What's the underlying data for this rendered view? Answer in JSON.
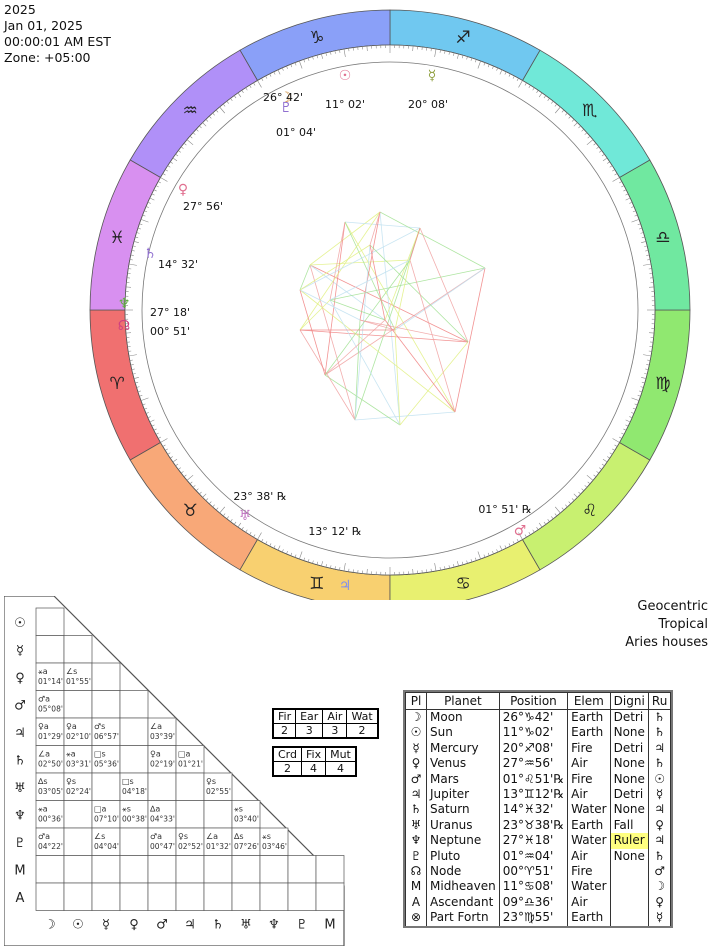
{
  "header": {
    "year": "2025",
    "date": "Jan 01, 2025",
    "time": "00:00:01 AM EST",
    "zone": "Zone: +05:00"
  },
  "settings": [
    "Geocentric",
    "Tropical",
    "Aries houses"
  ],
  "wheel": {
    "signs": [
      {
        "glyph": "♈",
        "color": "#f07070"
      },
      {
        "glyph": "♉",
        "color": "#f8a878"
      },
      {
        "glyph": "♊",
        "color": "#f8d070"
      },
      {
        "glyph": "♋",
        "color": "#e8f070"
      },
      {
        "glyph": "♌",
        "color": "#c8f070"
      },
      {
        "glyph": "♍",
        "color": "#90e870"
      },
      {
        "glyph": "♎",
        "color": "#70e8a0"
      },
      {
        "glyph": "♏",
        "color": "#70e8d8"
      },
      {
        "glyph": "♐",
        "color": "#70c8f0"
      },
      {
        "glyph": "♑",
        "color": "#8aa0f8"
      },
      {
        "glyph": "♒",
        "color": "#b090f8"
      },
      {
        "glyph": "♓",
        "color": "#d890f0"
      }
    ],
    "planet_labels": [
      {
        "glyph": "♃",
        "deg": "13°",
        "min": "12'",
        "retro": "℞"
      },
      {
        "glyph": "♅",
        "deg": "23°",
        "min": "38'",
        "retro": "℞"
      },
      {
        "glyph": "♂",
        "deg": "01°",
        "min": "51'",
        "retro": "℞"
      },
      {
        "glyph": "♆",
        "deg": "27°",
        "min": "18'"
      },
      {
        "glyph": "☊",
        "deg": "00°",
        "min": "51'"
      },
      {
        "glyph": "♀",
        "deg": "27°",
        "min": "56'"
      },
      {
        "glyph": "♇",
        "deg": "01°",
        "min": "04'"
      },
      {
        "glyph": "☽",
        "deg": "26°",
        "min": "42'"
      },
      {
        "glyph": "☉",
        "deg": "11°",
        "min": "02'"
      },
      {
        "glyph": "☿",
        "deg": "20°",
        "min": "08'"
      },
      {
        "glyph": "♄",
        "deg": "14°",
        "min": "32'"
      }
    ]
  },
  "aspect_grid": {
    "row_glyphs": [
      "☉",
      "☿",
      "♀",
      "♂",
      "♃",
      "♄",
      "♅",
      "♆",
      "♇",
      "M",
      "A"
    ],
    "col_glyphs": [
      "☽",
      "☉",
      "☿",
      "♀",
      "♂",
      "♃",
      "♄",
      "♅",
      "♆",
      "♇",
      "M"
    ],
    "cells": [
      {
        "r": 2,
        "c": 0,
        "a": "⚹a",
        "v": "01°14'"
      },
      {
        "r": 2,
        "c": 1,
        "a": "∠s",
        "v": "01°55'"
      },
      {
        "r": 3,
        "c": 0,
        "a": "♂a",
        "v": "05°08'"
      },
      {
        "r": 4,
        "c": 0,
        "a": "♀a",
        "v": "01°29'"
      },
      {
        "r": 4,
        "c": 1,
        "a": "♀a",
        "v": "02°10'"
      },
      {
        "r": 4,
        "c": 2,
        "a": "♂s",
        "v": "06°57'"
      },
      {
        "r": 4,
        "c": 4,
        "a": "∠a",
        "v": "03°39'"
      },
      {
        "r": 5,
        "c": 0,
        "a": "∠a",
        "v": "02°50'"
      },
      {
        "r": 5,
        "c": 1,
        "a": "⚹a",
        "v": "03°31'"
      },
      {
        "r": 5,
        "c": 2,
        "a": "□s",
        "v": "05°36'"
      },
      {
        "r": 5,
        "c": 4,
        "a": "♀a",
        "v": "02°19'"
      },
      {
        "r": 5,
        "c": 5,
        "a": "□a",
        "v": "01°21'"
      },
      {
        "r": 6,
        "c": 0,
        "a": "∆s",
        "v": "03°05'"
      },
      {
        "r": 6,
        "c": 1,
        "a": "♀s",
        "v": "02°24'"
      },
      {
        "r": 6,
        "c": 3,
        "a": "□s",
        "v": "04°18'"
      },
      {
        "r": 6,
        "c": 6,
        "a": "♀s",
        "v": "02°55'"
      },
      {
        "r": 7,
        "c": 0,
        "a": "⚹a",
        "v": "00°36'"
      },
      {
        "r": 7,
        "c": 2,
        "a": "□a",
        "v": "07°10'"
      },
      {
        "r": 7,
        "c": 3,
        "a": "⚹s",
        "v": "00°38'"
      },
      {
        "r": 7,
        "c": 4,
        "a": "∆a",
        "v": "04°33'"
      },
      {
        "r": 7,
        "c": 7,
        "a": "⚹s",
        "v": "03°40'"
      },
      {
        "r": 8,
        "c": 0,
        "a": "♂a",
        "v": "04°22'"
      },
      {
        "r": 8,
        "c": 2,
        "a": "∠s",
        "v": "04°04'"
      },
      {
        "r": 8,
        "c": 4,
        "a": "♂a",
        "v": "00°47'"
      },
      {
        "r": 8,
        "c": 5,
        "a": "♀s",
        "v": "02°52'"
      },
      {
        "r": 8,
        "c": 6,
        "a": "∠a",
        "v": "01°32'"
      },
      {
        "r": 8,
        "c": 7,
        "a": "∆s",
        "v": "07°26'"
      },
      {
        "r": 8,
        "c": 8,
        "a": "⚹s",
        "v": "03°46'"
      }
    ]
  },
  "elements": {
    "headers": [
      "Fir",
      "Ear",
      "Air",
      "Wat"
    ],
    "values": [
      "2",
      "3",
      "3",
      "2"
    ]
  },
  "modes": {
    "headers": [
      "Crd",
      "Fix",
      "Mut"
    ],
    "values": [
      "2",
      "4",
      "4"
    ]
  },
  "planet_table": {
    "headers": [
      "Pl",
      "Planet",
      "Position",
      "Elem",
      "Digni",
      "Ru"
    ],
    "rows": [
      {
        "gl": "☽",
        "name": "Moon",
        "pos": "26°♑42'",
        "elem": "Earth",
        "dig": "Detri",
        "ru": "♄"
      },
      {
        "gl": "☉",
        "name": "Sun",
        "pos": "11°♑02'",
        "elem": "Earth",
        "dig": "None",
        "ru": "♄"
      },
      {
        "gl": "☿",
        "name": "Mercury",
        "pos": "20°♐08'",
        "elem": "Fire",
        "dig": "Detri",
        "ru": "♃"
      },
      {
        "gl": "♀",
        "name": "Venus",
        "pos": "27°♒56'",
        "elem": "Air",
        "dig": "None",
        "ru": "♄"
      },
      {
        "gl": "♂",
        "name": "Mars",
        "pos": "01°♌51'℞",
        "elem": "Fire",
        "dig": "None",
        "ru": "☉"
      },
      {
        "gl": "♃",
        "name": "Jupiter",
        "pos": "13°♊12'℞",
        "elem": "Air",
        "dig": "Detri",
        "ru": "☿"
      },
      {
        "gl": "♄",
        "name": "Saturn",
        "pos": "14°♓32'",
        "elem": "Water",
        "dig": "None",
        "ru": "♃"
      },
      {
        "gl": "♅",
        "name": "Uranus",
        "pos": "23°♉38'℞",
        "elem": "Earth",
        "dig": "Fall",
        "ru": "♀"
      },
      {
        "gl": "♆",
        "name": "Neptune",
        "pos": "27°♓18'",
        "elem": "Water",
        "dig": "Ruler",
        "ru": "♃",
        "hl": true
      },
      {
        "gl": "♇",
        "name": "Pluto",
        "pos": "01°♒04'",
        "elem": "Air",
        "dig": "None",
        "ru": "♄"
      },
      {
        "gl": "☊",
        "name": "Node",
        "pos": "00°♈51'",
        "elem": "Fire",
        "dig": "",
        "ru": "♂"
      },
      {
        "gl": "M",
        "name": "Midheaven",
        "pos": "11°♋08'",
        "elem": "Water",
        "dig": "",
        "ru": "☽"
      },
      {
        "gl": "A",
        "name": "Ascendant",
        "pos": "09°♎36'",
        "elem": "Air",
        "dig": "",
        "ru": "♀"
      },
      {
        "gl": "⊗",
        "name": "Part Fortn",
        "pos": "23°♍55'",
        "elem": "Earth",
        "dig": "",
        "ru": "☿"
      }
    ]
  }
}
